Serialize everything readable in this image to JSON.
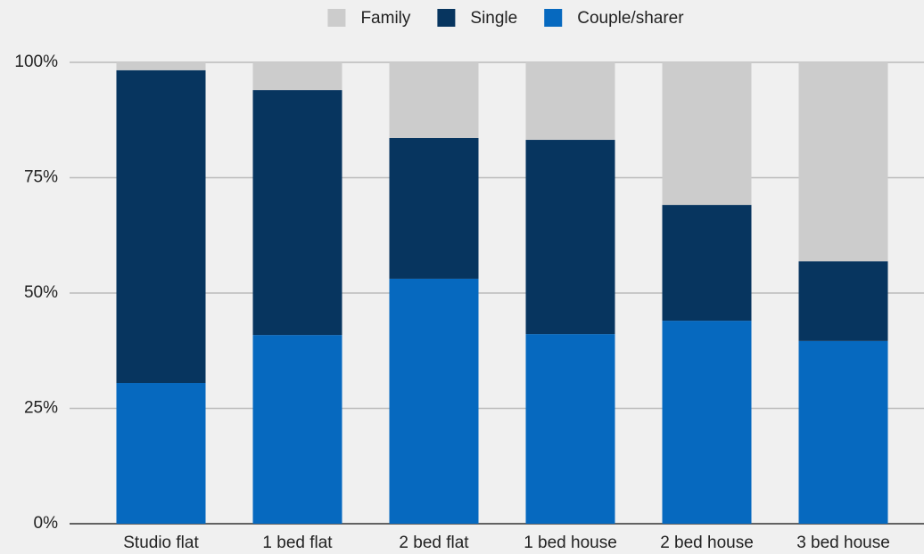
{
  "chart_data": {
    "type": "stacked_bar",
    "categories": [
      "Studio flat",
      "1 bed flat",
      "2 bed flat",
      "1 bed house",
      "2 bed house",
      "3 bed house"
    ],
    "series": [
      {
        "name": "Family",
        "color": "#cccccc",
        "values": [
          1.7,
          6.0,
          16.4,
          16.8,
          30.9,
          43.1
        ]
      },
      {
        "name": "Single",
        "color": "#07355f",
        "values": [
          67.8,
          53.1,
          30.5,
          42.1,
          25.1,
          17.3
        ]
      },
      {
        "name": "Couple/sharer",
        "color": "#0669bf",
        "values": [
          30.5,
          40.9,
          53.1,
          41.1,
          44.0,
          39.6
        ]
      }
    ],
    "ylim": [
      0,
      100
    ],
    "yticks": [
      {
        "value": 0,
        "label": "0%"
      },
      {
        "value": 25,
        "label": "25%"
      },
      {
        "value": 50,
        "label": "50%"
      },
      {
        "value": 75,
        "label": "75%"
      },
      {
        "value": 100,
        "label": "100%"
      }
    ],
    "grid": true,
    "legend": "top"
  }
}
